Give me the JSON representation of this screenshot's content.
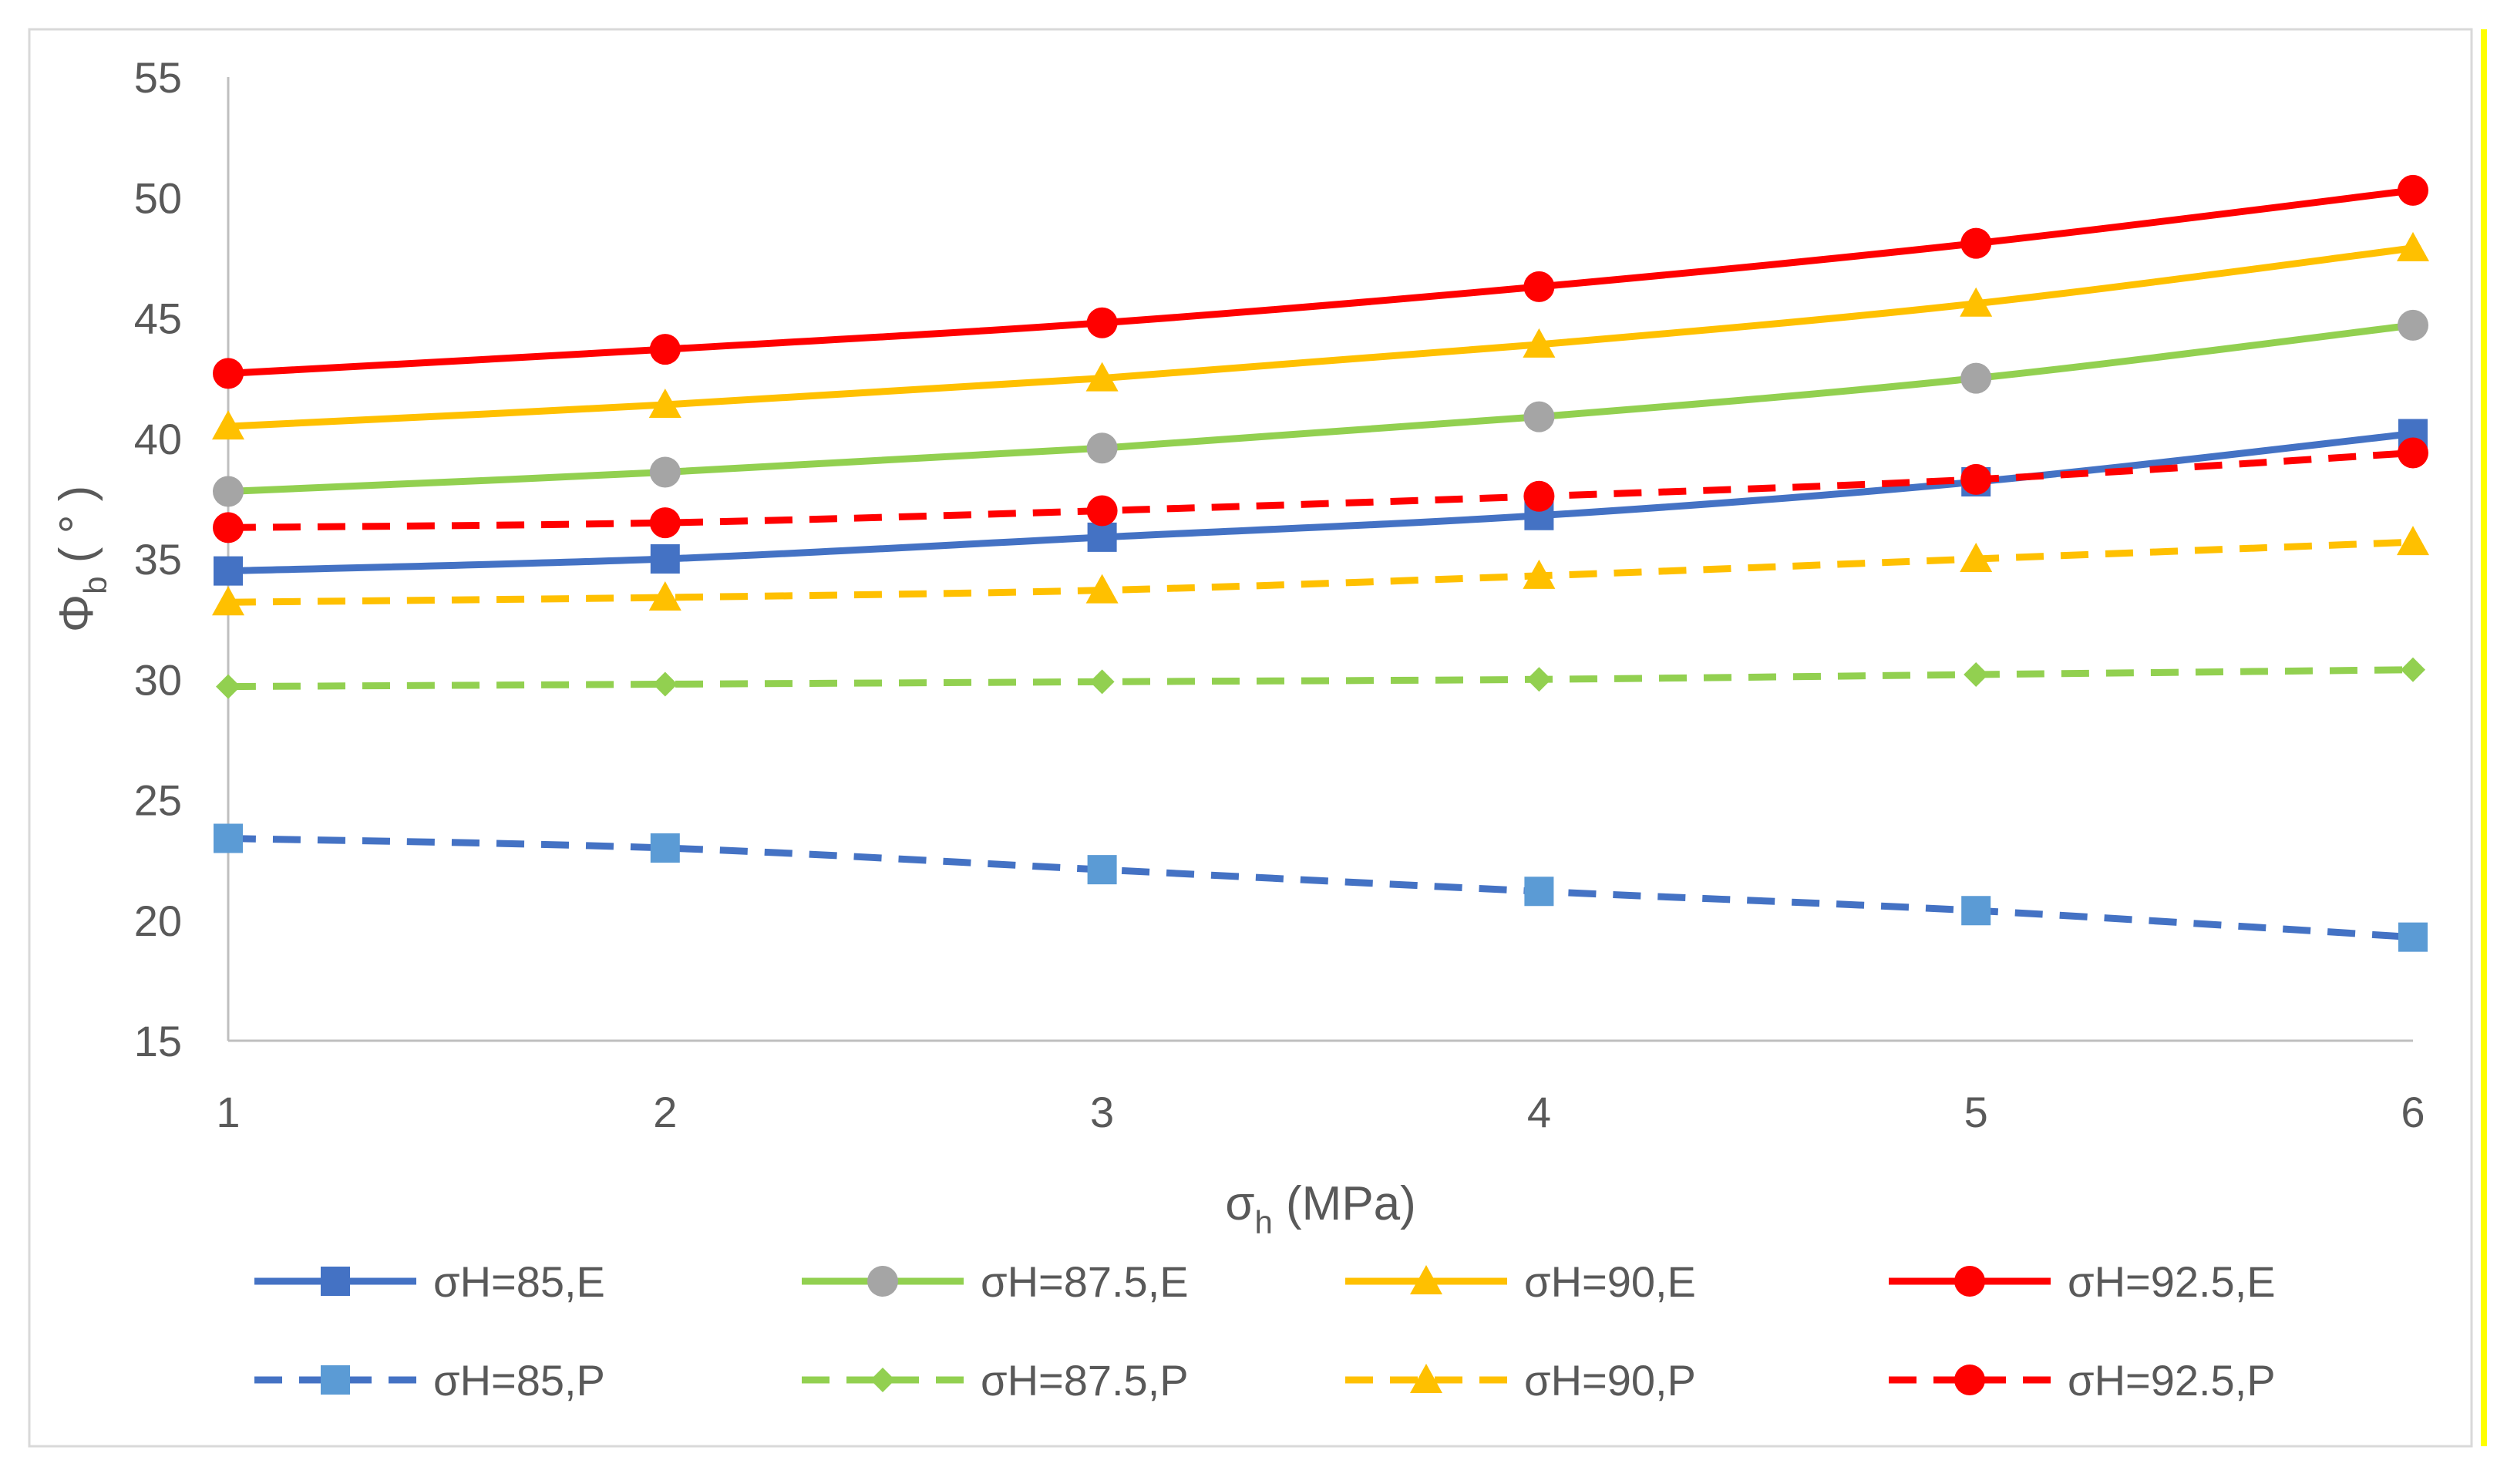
{
  "chart_data": {
    "type": "line",
    "x": [
      1,
      2,
      3,
      4,
      5,
      6
    ],
    "xlim": [
      1,
      6
    ],
    "ylim": [
      15,
      55
    ],
    "y_ticks": [
      15,
      20,
      25,
      30,
      35,
      40,
      45,
      50,
      55
    ],
    "x_ticks": [
      1,
      2,
      3,
      4,
      5,
      6
    ],
    "xlabel": {
      "main": "σ",
      "sub": "h",
      "rest": " (MPa)"
    },
    "ylabel": {
      "main": "Φ",
      "sub": "b",
      "rest": " ( ° )"
    },
    "grid": false,
    "legend_position": "bottom",
    "series": [
      {
        "name": "σH=85,E",
        "color": "#4472c4",
        "dash": "solid",
        "marker": "square",
        "marker_color": "#4472c4",
        "values": [
          34.5,
          35.0,
          35.9,
          36.8,
          38.2,
          40.2
        ]
      },
      {
        "name": "σH=87.5,E",
        "color": "#92d050",
        "dash": "solid",
        "marker": "circle",
        "marker_color": "#a5a5a5",
        "values": [
          37.8,
          38.6,
          39.6,
          40.9,
          42.5,
          44.7
        ]
      },
      {
        "name": "σH=90,E",
        "color": "#ffc000",
        "dash": "solid",
        "marker": "triangle",
        "marker_color": "#ffc000",
        "values": [
          40.5,
          41.4,
          42.5,
          43.9,
          45.6,
          47.9
        ]
      },
      {
        "name": "σH=92.5,E",
        "color": "#ff0000",
        "dash": "solid",
        "marker": "circle",
        "marker_color": "#ff0000",
        "values": [
          42.7,
          43.7,
          44.8,
          46.3,
          48.1,
          50.3
        ]
      },
      {
        "name": "σH=85,P",
        "color": "#4472c4",
        "dash": "dashed",
        "marker": "square",
        "marker_color": "#5b9bd5",
        "values": [
          23.4,
          23.0,
          22.1,
          21.2,
          20.4,
          19.3
        ]
      },
      {
        "name": "σH=87.5,P",
        "color": "#92d050",
        "dash": "dashed",
        "marker": "diamond",
        "marker_color": "#92d050",
        "values": [
          29.7,
          29.8,
          29.9,
          30.0,
          30.2,
          30.4
        ]
      },
      {
        "name": "σH=90,P",
        "color": "#ffc000",
        "dash": "dashed",
        "marker": "triangle",
        "marker_color": "#ffc000",
        "values": [
          33.2,
          33.4,
          33.7,
          34.3,
          35.0,
          35.7
        ]
      },
      {
        "name": "σH=92.5,P",
        "color": "#ff0000",
        "dash": "dashed",
        "marker": "circle",
        "marker_color": "#ff0000",
        "values": [
          36.3,
          36.5,
          37.0,
          37.6,
          38.3,
          39.4
        ]
      }
    ]
  }
}
